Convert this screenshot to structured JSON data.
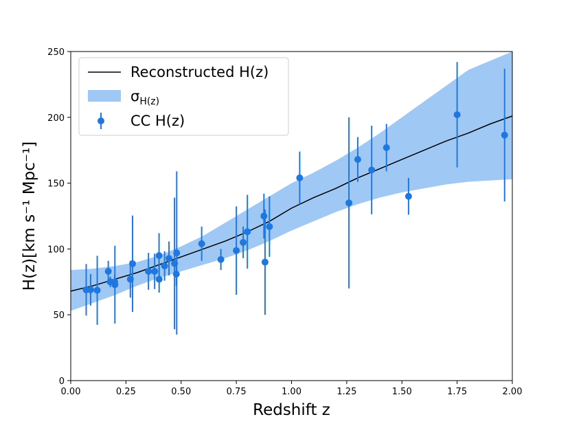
{
  "chart_data": {
    "type": "scatter",
    "xlabel": "Redshift z",
    "ylabel": "H(z)[km s⁻¹ Mpc⁻¹]",
    "xlim": [
      0.0,
      2.0
    ],
    "ylim": [
      0,
      250
    ],
    "x_ticks": [
      "0.00",
      "0.25",
      "0.50",
      "0.75",
      "1.00",
      "1.25",
      "1.50",
      "1.75",
      "2.00"
    ],
    "y_ticks": [
      "0",
      "50",
      "100",
      "150",
      "200",
      "250"
    ],
    "grid": false,
    "legend_position": "upper-left",
    "legend": {
      "reconstructed": "Reconstructed H(z)",
      "sigma_main": "σ",
      "sigma_sub": "H(z)",
      "cc": "CC H(z)"
    },
    "colors": {
      "band": "#a0c8f5",
      "points": "#1f77e0",
      "line": "#000000"
    },
    "reconstructed": {
      "x": [
        0.0,
        0.1,
        0.2,
        0.3,
        0.4,
        0.5,
        0.6,
        0.7,
        0.8,
        0.9,
        1.0,
        1.1,
        1.2,
        1.3,
        1.4,
        1.5,
        1.6,
        1.7,
        1.8,
        1.9,
        2.0
      ],
      "y": [
        68,
        72,
        77,
        82,
        88,
        94,
        100,
        106,
        113,
        121,
        131,
        139,
        146,
        154,
        161,
        168,
        175,
        182,
        188,
        195,
        201
      ]
    },
    "band": {
      "x": [
        0.0,
        0.1,
        0.2,
        0.3,
        0.4,
        0.5,
        0.6,
        0.7,
        0.8,
        0.9,
        1.0,
        1.1,
        1.2,
        1.3,
        1.4,
        1.5,
        1.6,
        1.7,
        1.8,
        1.9,
        2.0
      ],
      "upper": [
        84,
        85,
        87,
        90,
        95,
        102,
        110,
        120,
        130,
        140,
        150,
        158,
        167,
        177,
        188,
        200,
        212,
        224,
        236,
        243,
        250
      ],
      "lower": [
        53,
        59,
        65,
        72,
        78,
        83,
        88,
        93,
        99,
        106,
        114,
        121,
        128,
        134,
        139,
        143,
        146,
        149,
        151,
        152,
        153
      ]
    },
    "series": [
      {
        "name": "CC H(z)",
        "x": [
          0.07,
          0.09,
          0.12,
          0.17,
          0.179,
          0.199,
          0.2,
          0.27,
          0.28,
          0.352,
          0.38,
          0.4,
          0.4004,
          0.425,
          0.445,
          0.47,
          0.4783,
          0.48,
          0.593,
          0.68,
          0.75,
          0.781,
          0.8,
          0.875,
          0.88,
          0.9,
          1.037,
          1.26,
          1.3,
          1.363,
          1.43,
          1.53,
          1.75,
          1.965
        ],
        "y": [
          69,
          69,
          68.6,
          83,
          75,
          75,
          72.9,
          77,
          88.8,
          83,
          83,
          95,
          77,
          87.1,
          92.8,
          89,
          80.9,
          97,
          104,
          92,
          98.8,
          105,
          113.1,
          125,
          90,
          117,
          154,
          135,
          168,
          160,
          177,
          140,
          202,
          186.5
        ],
        "err": [
          19.6,
          12,
          26.2,
          8,
          4,
          5,
          29.6,
          14,
          36.6,
          14,
          13.5,
          17,
          10.2,
          11.2,
          12.9,
          50,
          9,
          62,
          13,
          8,
          33.6,
          12,
          28,
          17,
          40,
          23,
          20,
          65,
          17,
          33.6,
          18,
          14,
          40,
          50.4
        ]
      }
    ]
  }
}
